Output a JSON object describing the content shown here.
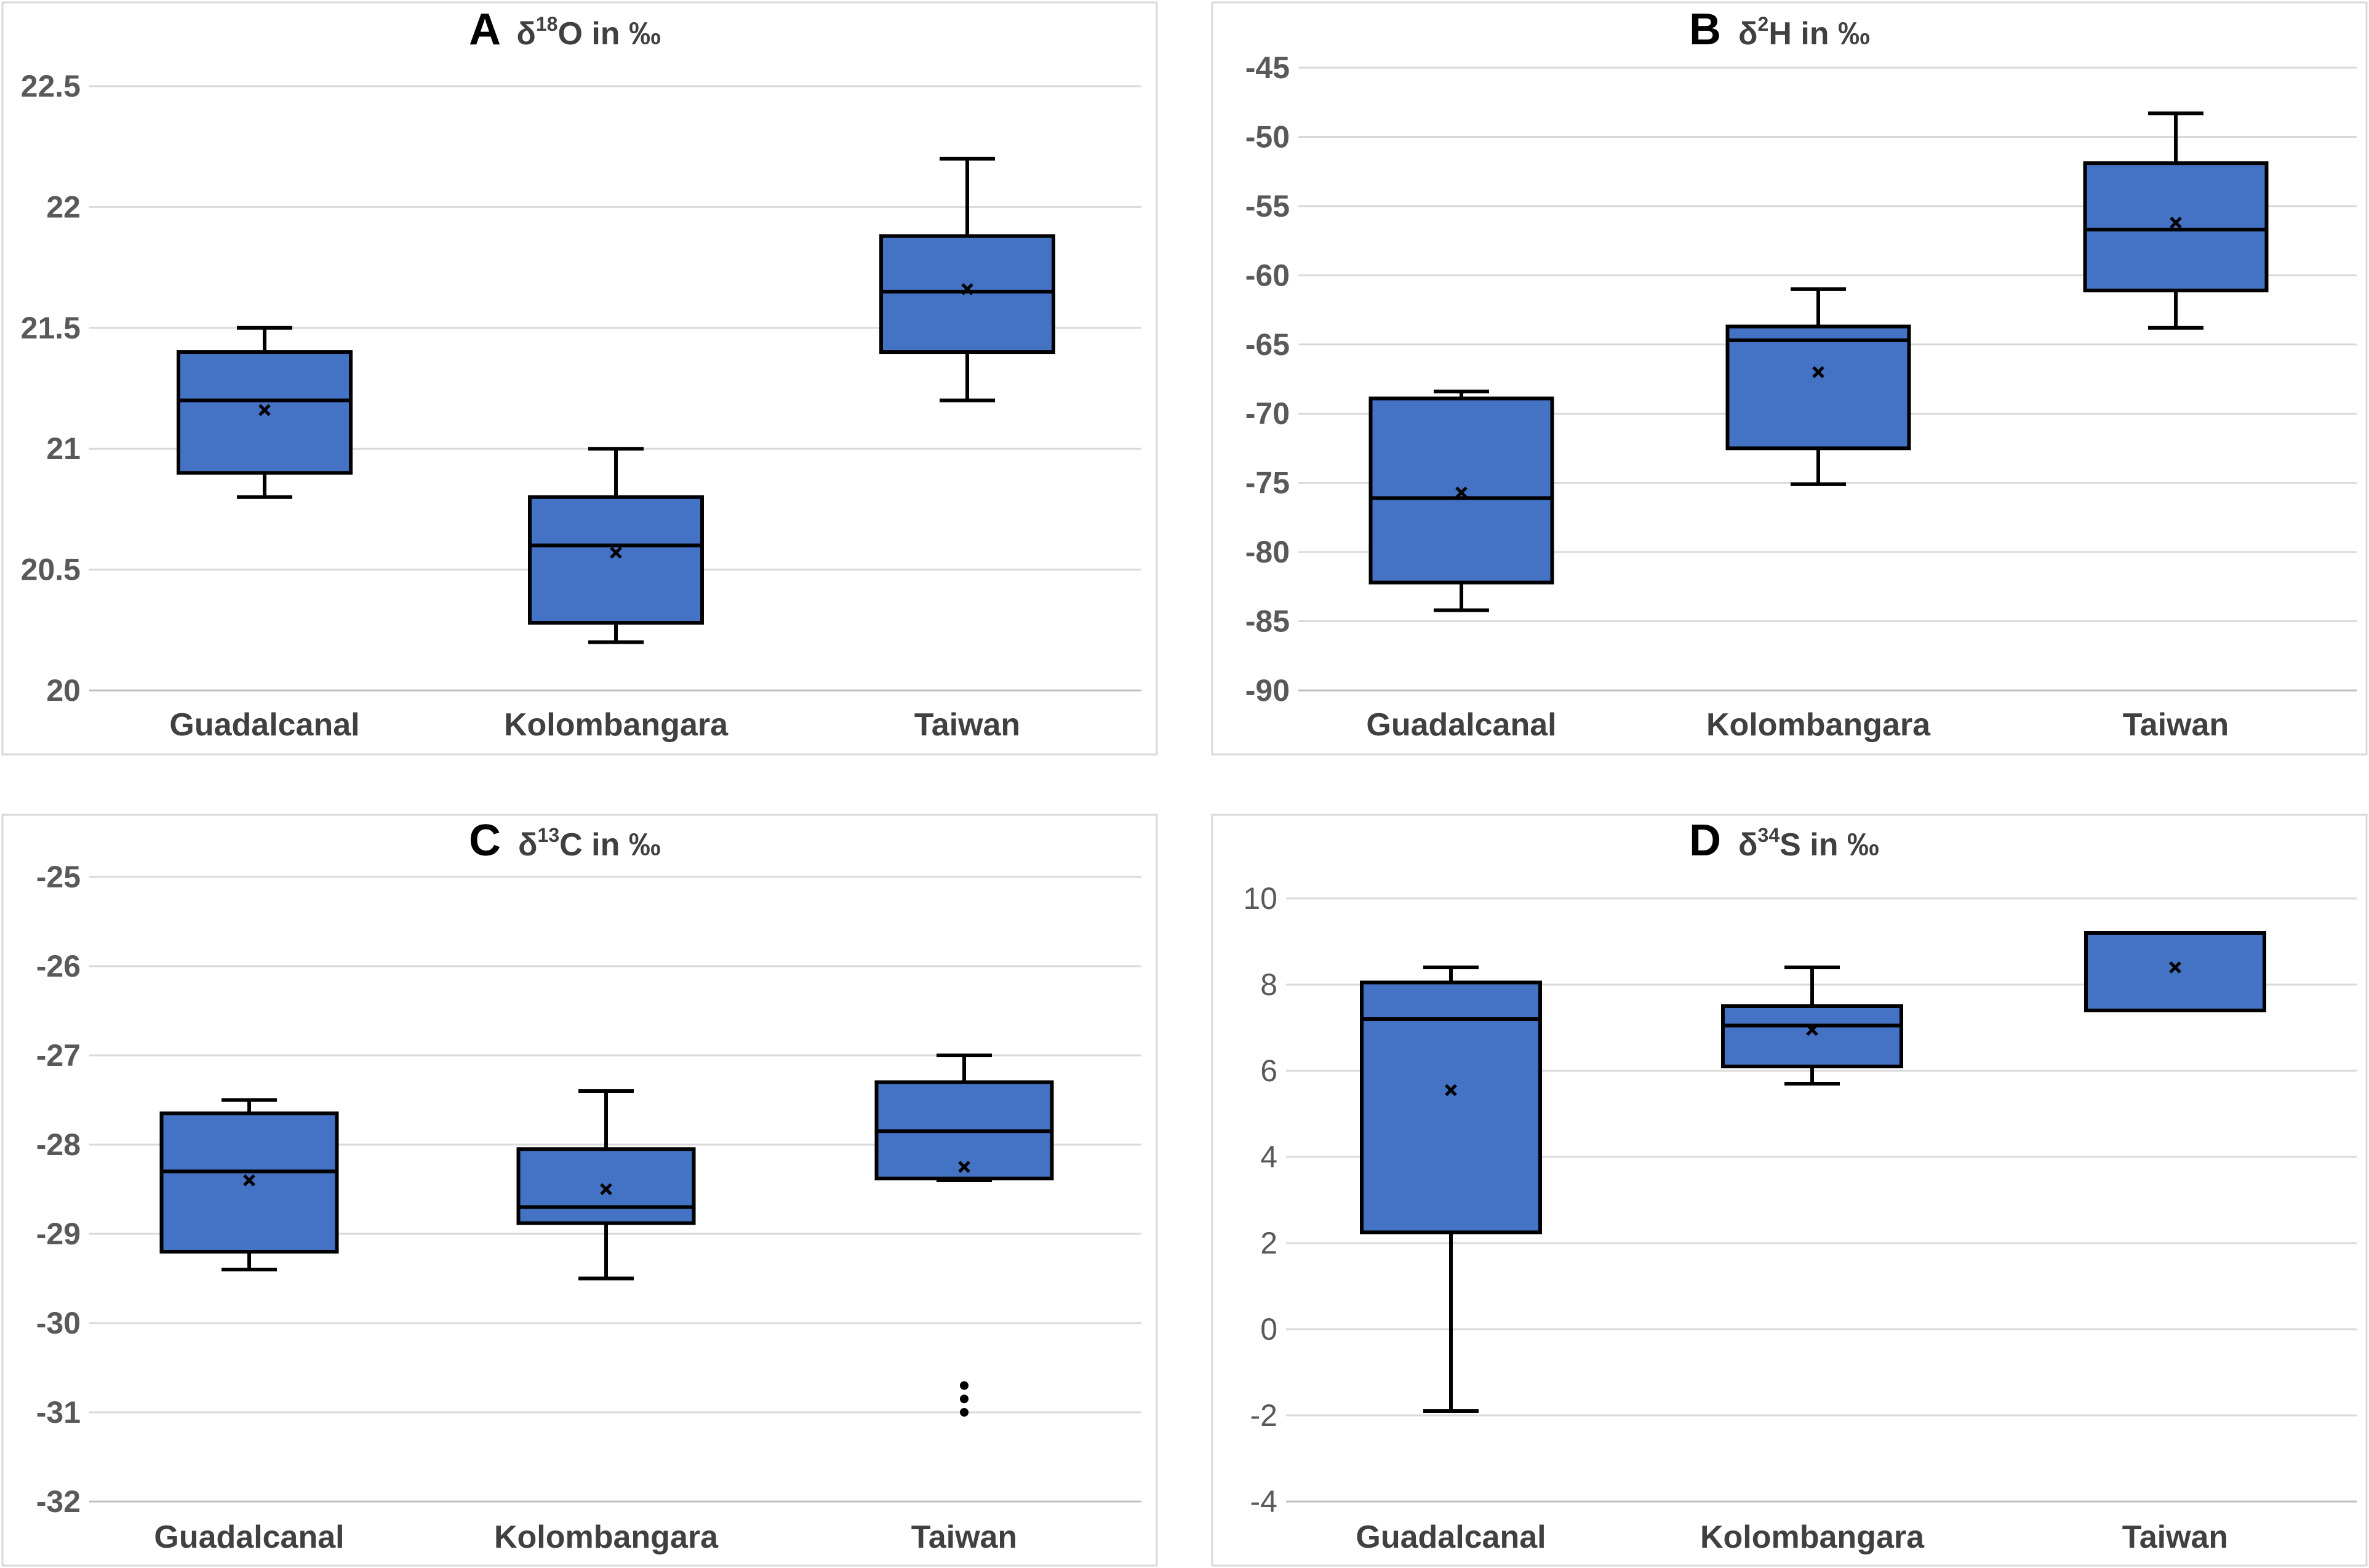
{
  "chart_data": [
    {
      "type": "box",
      "panel": "A",
      "title": "δ18O in ‰",
      "title_prefix": "δ",
      "title_superscript": "18",
      "title_suffix": "O in ‰",
      "categories": [
        "Guadalcanal",
        "Kolombangara",
        "Taiwan"
      ],
      "ylim": [
        20,
        22.5
      ],
      "yticks": [
        "20",
        "20.5",
        "21",
        "21.5",
        "22",
        "22.5"
      ],
      "ytick_values": [
        20,
        20.5,
        21,
        21.5,
        22,
        22.5
      ],
      "boxes": [
        {
          "min": 20.8,
          "q1": 20.9,
          "median": 21.2,
          "q3": 21.4,
          "max": 21.5,
          "mean": 21.16,
          "outliers": []
        },
        {
          "min": 20.2,
          "q1": 20.28,
          "median": 20.6,
          "q3": 20.8,
          "max": 21.0,
          "mean": 20.57,
          "outliers": []
        },
        {
          "min": 21.2,
          "q1": 21.4,
          "median": 21.65,
          "q3": 21.88,
          "max": 22.2,
          "mean": 21.66,
          "outliers": []
        }
      ],
      "box_color": "#4472c4"
    },
    {
      "type": "box",
      "panel": "B",
      "title": "δ2H in ‰",
      "title_prefix": "δ",
      "title_superscript": "2",
      "title_suffix": "H in ‰",
      "categories": [
        "Guadalcanal",
        "Kolombangara",
        "Taiwan"
      ],
      "ylim": [
        -90,
        -45
      ],
      "yticks": [
        "-90",
        "-85",
        "-80",
        "-75",
        "-70",
        "-65",
        "-60",
        "-55",
        "-50",
        "-45"
      ],
      "ytick_values": [
        -90,
        -85,
        -80,
        -75,
        -70,
        -65,
        -60,
        -55,
        -50,
        -45
      ],
      "boxes": [
        {
          "min": -84.2,
          "q1": -82.2,
          "median": -76.1,
          "q3": -68.9,
          "max": -68.4,
          "mean": -75.7,
          "outliers": []
        },
        {
          "min": -75.1,
          "q1": -72.5,
          "median": -64.7,
          "q3": -63.7,
          "max": -61.0,
          "mean": -67.0,
          "outliers": []
        },
        {
          "min": -63.8,
          "q1": -61.1,
          "median": -56.7,
          "q3": -51.9,
          "max": -48.3,
          "mean": -56.2,
          "outliers": []
        }
      ],
      "box_color": "#4472c4"
    },
    {
      "type": "box",
      "panel": "C",
      "title": "δ13C in ‰",
      "title_prefix": "δ",
      "title_superscript": "13",
      "title_suffix": "C in ‰",
      "categories": [
        "Guadalcanal",
        "Kolombangara",
        "Taiwan"
      ],
      "ylim": [
        -32,
        -25
      ],
      "yticks": [
        "-32",
        "-31",
        "-30",
        "-29",
        "-28",
        "-27",
        "-26",
        "-25"
      ],
      "ytick_values": [
        -32,
        -31,
        -30,
        -29,
        -28,
        -27,
        -26,
        -25
      ],
      "boxes": [
        {
          "min": -29.4,
          "q1": -29.2,
          "median": -28.3,
          "q3": -27.65,
          "max": -27.5,
          "mean": -28.4,
          "outliers": []
        },
        {
          "min": -29.5,
          "q1": -28.88,
          "median": -28.7,
          "q3": -28.05,
          "max": -27.4,
          "mean": -28.5,
          "outliers": []
        },
        {
          "min": -28.4,
          "q1": -28.38,
          "median": -27.85,
          "q3": -27.3,
          "max": -27.0,
          "mean": -28.25,
          "outliers": [
            -30.7,
            -30.85,
            -31.0
          ]
        }
      ],
      "box_color": "#4472c4"
    },
    {
      "type": "box",
      "panel": "D",
      "title": "δ34S in ‰",
      "title_prefix": "δ",
      "title_superscript": "34",
      "title_suffix": "S in ‰",
      "categories": [
        "Guadalcanal",
        "Kolombangara",
        "Taiwan"
      ],
      "ylim": [
        -4,
        10
      ],
      "yticks": [
        "-4",
        "-2",
        "0",
        "2",
        "4",
        "6",
        "8",
        "10"
      ],
      "ytick_values": [
        -4,
        -2,
        0,
        2,
        4,
        6,
        8,
        10
      ],
      "boxes": [
        {
          "min": -1.9,
          "q1": 2.25,
          "median": 7.2,
          "q3": 8.05,
          "max": 8.4,
          "mean": 5.55,
          "outliers": []
        },
        {
          "min": 5.7,
          "q1": 6.1,
          "median": 7.05,
          "q3": 7.5,
          "max": 8.4,
          "mean": 6.95,
          "outliers": []
        },
        {
          "min": 7.4,
          "q1": 7.4,
          "median": 7.4,
          "q3": 9.2,
          "max": 9.2,
          "mean": 8.4,
          "outliers": []
        }
      ],
      "box_color": "#4472c4"
    }
  ]
}
